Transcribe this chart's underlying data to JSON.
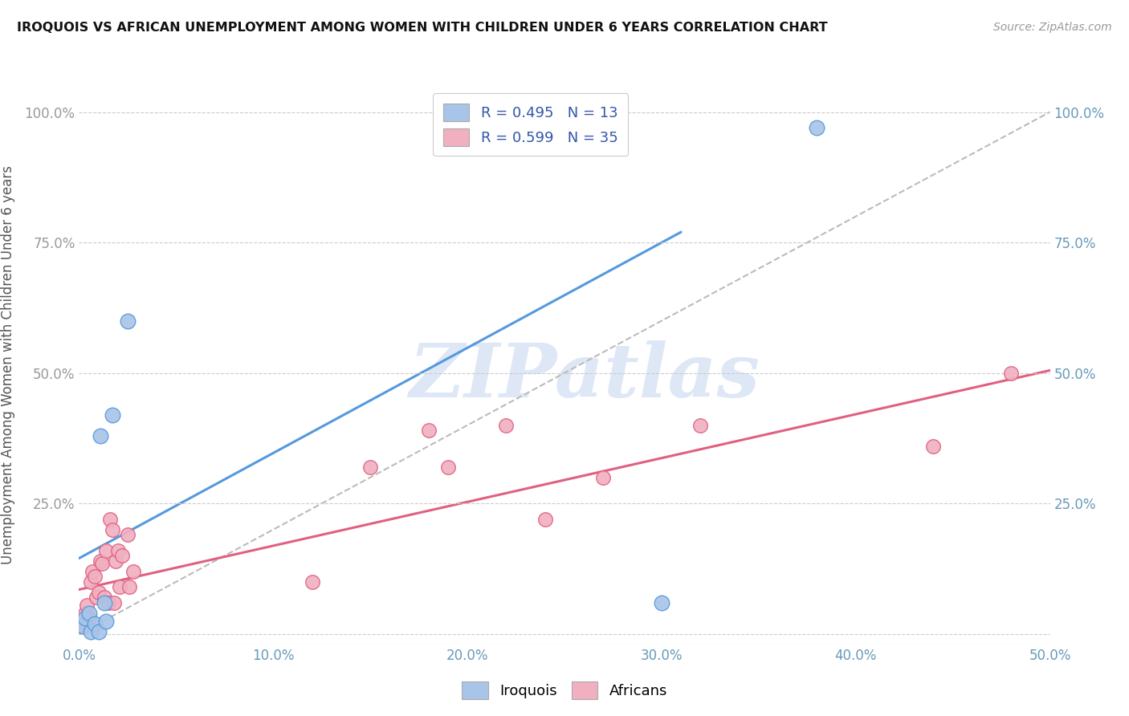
{
  "title": "IROQUOIS VS AFRICAN UNEMPLOYMENT AMONG WOMEN WITH CHILDREN UNDER 6 YEARS CORRELATION CHART",
  "source": "Source: ZipAtlas.com",
  "ylabel": "Unemployment Among Women with Children Under 6 years",
  "x_tick_labels": [
    "0.0%",
    "10.0%",
    "20.0%",
    "30.0%",
    "40.0%",
    "50.0%"
  ],
  "y_tick_labels_left": [
    "",
    "25.0%",
    "50.0%",
    "75.0%",
    "100.0%"
  ],
  "y_tick_labels_right": [
    "",
    "25.0%",
    "50.0%",
    "75.0%",
    "100.0%"
  ],
  "xlim": [
    0.0,
    0.5
  ],
  "ylim": [
    -0.02,
    1.05
  ],
  "iroquois_color": "#a8c4e8",
  "africans_color": "#f0b0c0",
  "iroquois_line_color": "#5599dd",
  "africans_line_color": "#e06080",
  "ref_line_color": "#bbbbbb",
  "watermark": "ZIPatlas",
  "watermark_color": "#c8d8f0",
  "iroquois_scatter_x": [
    0.002,
    0.003,
    0.005,
    0.006,
    0.008,
    0.01,
    0.011,
    0.013,
    0.014,
    0.017,
    0.025,
    0.3,
    0.38
  ],
  "iroquois_scatter_y": [
    0.015,
    0.03,
    0.04,
    0.005,
    0.02,
    0.005,
    0.38,
    0.06,
    0.025,
    0.42,
    0.6,
    0.06,
    0.97
  ],
  "africans_scatter_x": [
    0.001,
    0.002,
    0.003,
    0.004,
    0.005,
    0.006,
    0.007,
    0.008,
    0.009,
    0.01,
    0.011,
    0.012,
    0.013,
    0.014,
    0.015,
    0.016,
    0.017,
    0.018,
    0.019,
    0.02,
    0.021,
    0.022,
    0.025,
    0.026,
    0.028,
    0.12,
    0.15,
    0.18,
    0.19,
    0.22,
    0.24,
    0.27,
    0.32,
    0.44,
    0.48
  ],
  "africans_scatter_y": [
    0.025,
    0.015,
    0.04,
    0.055,
    0.03,
    0.1,
    0.12,
    0.11,
    0.07,
    0.08,
    0.14,
    0.135,
    0.07,
    0.16,
    0.06,
    0.22,
    0.2,
    0.06,
    0.14,
    0.16,
    0.09,
    0.15,
    0.19,
    0.09,
    0.12,
    0.1,
    0.32,
    0.39,
    0.32,
    0.4,
    0.22,
    0.3,
    0.4,
    0.36,
    0.5
  ],
  "iroquois_line_x": [
    0.0,
    0.31
  ],
  "iroquois_line_y": [
    0.145,
    0.77
  ],
  "africans_line_x": [
    0.0,
    0.5
  ],
  "africans_line_y": [
    0.085,
    0.505
  ],
  "ref_line_x": [
    0.0,
    0.5
  ],
  "ref_line_y": [
    0.0,
    1.0
  ]
}
